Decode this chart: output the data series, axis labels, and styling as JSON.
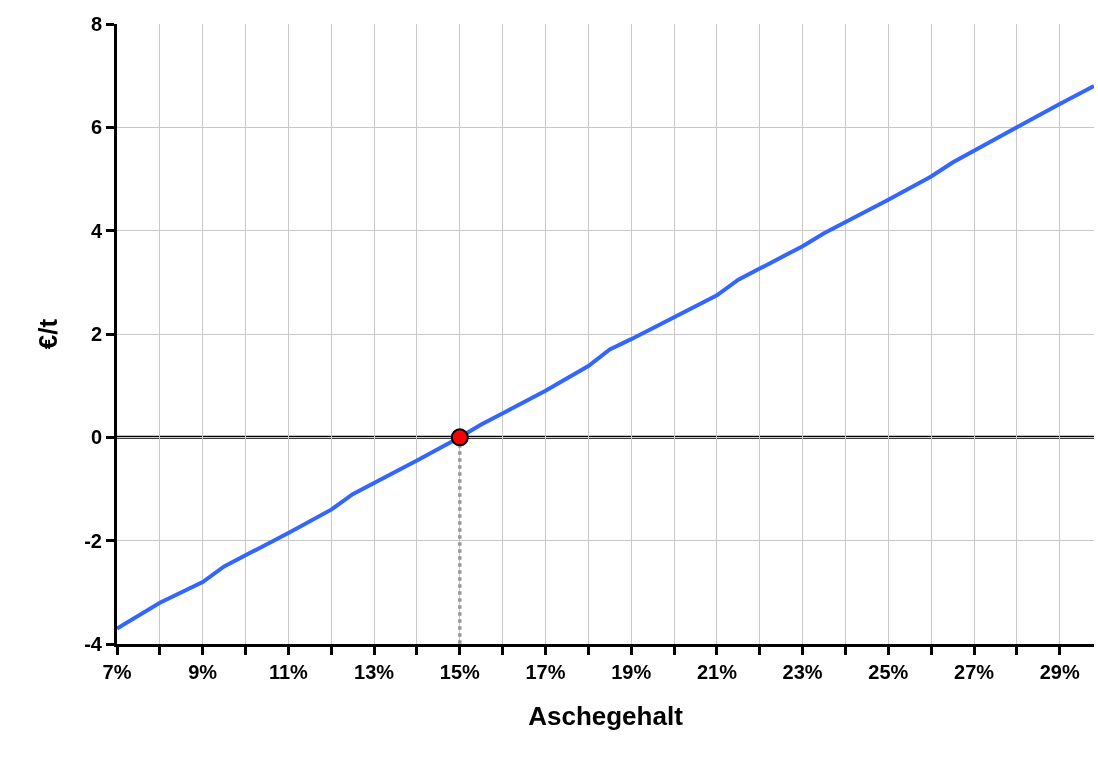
{
  "chart_data": {
    "type": "line",
    "xlabel": "Aschegehalt",
    "ylabel": "€/t",
    "xlim": [
      7,
      29.8
    ],
    "ylim": [
      -4,
      8
    ],
    "xticks": [
      {
        "value": 7,
        "label": "7%"
      },
      {
        "value": 8,
        "label": null
      },
      {
        "value": 9,
        "label": "9%"
      },
      {
        "value": 10,
        "label": null
      },
      {
        "value": 11,
        "label": "11%"
      },
      {
        "value": 12,
        "label": null
      },
      {
        "value": 13,
        "label": "13%"
      },
      {
        "value": 14,
        "label": null
      },
      {
        "value": 15,
        "label": "15%"
      },
      {
        "value": 16,
        "label": null
      },
      {
        "value": 17,
        "label": "17%"
      },
      {
        "value": 18,
        "label": null
      },
      {
        "value": 19,
        "label": "19%"
      },
      {
        "value": 20,
        "label": null
      },
      {
        "value": 21,
        "label": "21%"
      },
      {
        "value": 22,
        "label": null
      },
      {
        "value": 23,
        "label": "23%"
      },
      {
        "value": 24,
        "label": null
      },
      {
        "value": 25,
        "label": "25%"
      },
      {
        "value": 26,
        "label": null
      },
      {
        "value": 27,
        "label": "27%"
      },
      {
        "value": 28,
        "label": null
      },
      {
        "value": 29,
        "label": "29%"
      }
    ],
    "yticks": [
      -4,
      -2,
      0,
      2,
      4,
      6,
      8
    ],
    "grid": true,
    "ref_lines": [
      {
        "axis": "y",
        "value": 0,
        "color": "#000000",
        "line_style": "solid"
      }
    ],
    "series": [
      {
        "color": "#3366ff",
        "line_style": "solid",
        "marker": "none",
        "x": [
          7,
          8,
          9,
          9.5,
          11,
          12,
          12.5,
          14,
          15,
          15.5,
          17,
          18,
          18.5,
          19,
          21,
          21.5,
          23,
          23.5,
          25,
          26,
          26.5,
          28,
          29,
          29.8
        ],
        "values": [
          -3.7,
          -3.2,
          -2.8,
          -2.5,
          -1.85,
          -1.4,
          -1.1,
          -0.45,
          0,
          0.25,
          0.9,
          1.38,
          1.7,
          1.9,
          2.75,
          3.05,
          3.7,
          3.95,
          4.6,
          5.05,
          5.32,
          6.0,
          6.45,
          6.8
        ]
      },
      {
        "type": "line",
        "color": "#999999",
        "line_style": "dotted",
        "marker": "none",
        "x": [
          15,
          15
        ],
        "values": [
          0,
          -4
        ]
      },
      {
        "type": "scatter",
        "color": "#ff0000",
        "marker": "circle",
        "x": [
          15
        ],
        "values": [
          0
        ]
      }
    ]
  }
}
